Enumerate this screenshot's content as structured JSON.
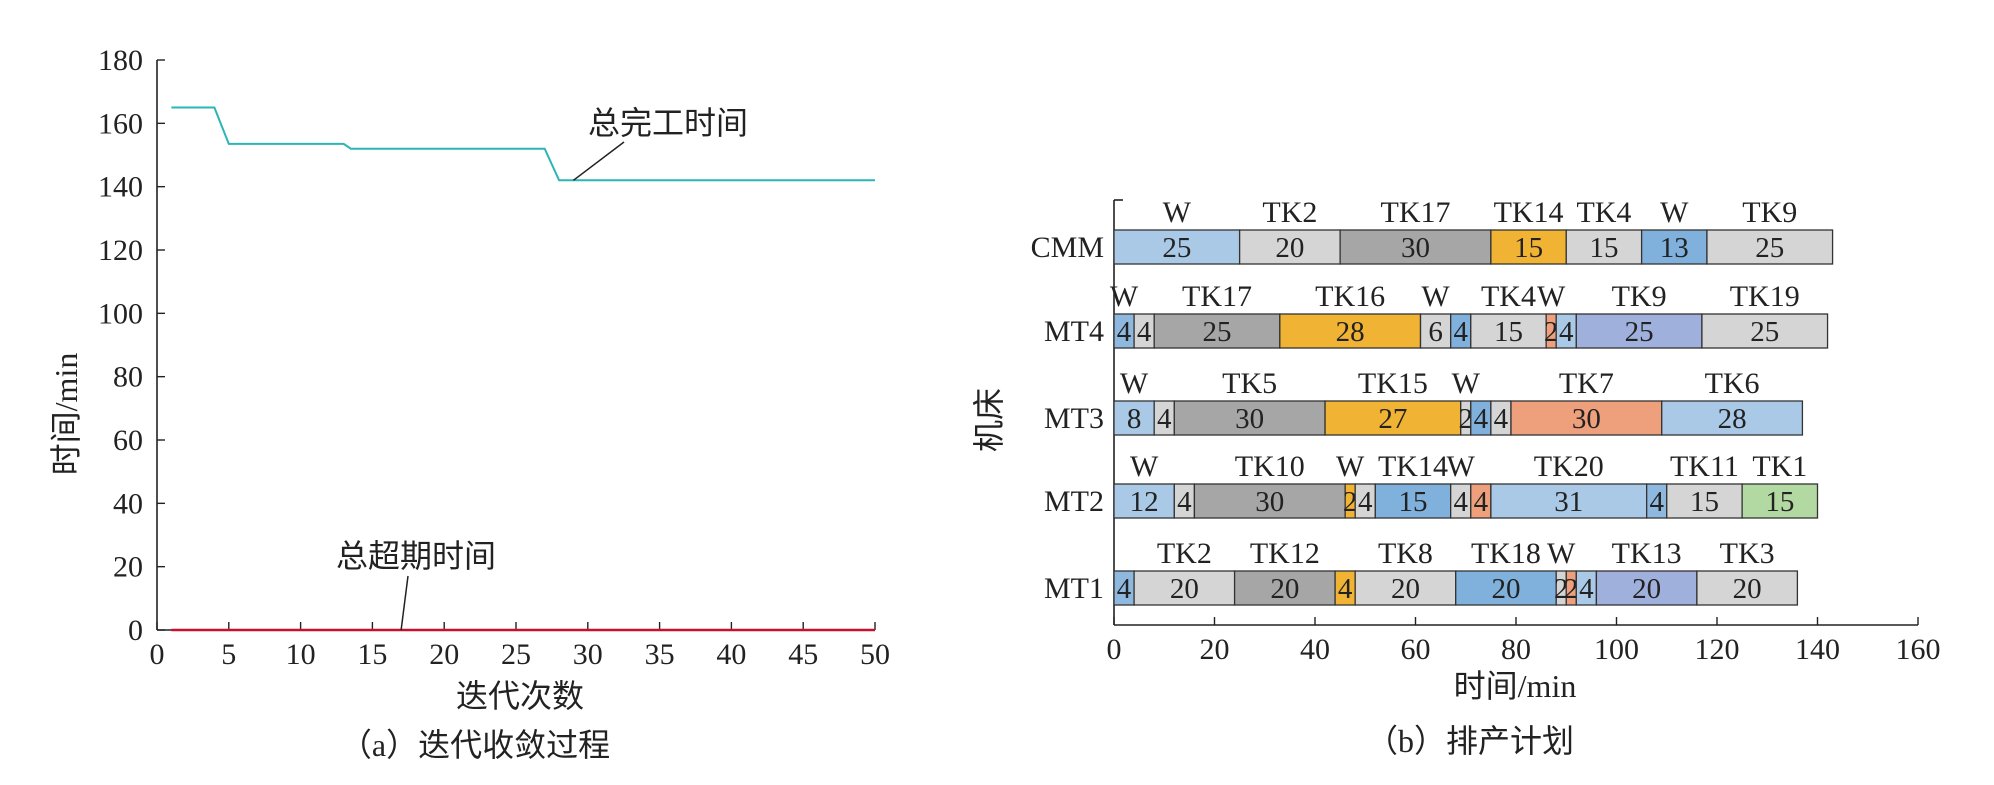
{
  "chart_data": [
    {
      "type": "line",
      "caption": "（a）迭代收敛过程",
      "xlabel": "迭代次数",
      "ylabel": "时间/min",
      "xlim": [
        0,
        50
      ],
      "ylim": [
        0,
        180
      ],
      "xticks": [
        0,
        5,
        10,
        15,
        20,
        25,
        30,
        35,
        40,
        45,
        50
      ],
      "yticks": [
        0,
        20,
        40,
        60,
        80,
        100,
        120,
        140,
        160,
        180
      ],
      "series": [
        {
          "name": "总完工时间",
          "color": "#2bb5b5",
          "x": [
            1,
            4,
            5,
            13,
            13.5,
            27,
            28,
            29,
            50
          ],
          "y": [
            165,
            165,
            153.5,
            153.5,
            152,
            152,
            142,
            142,
            142
          ]
        },
        {
          "name": "总超期时间",
          "color": "#c8102e",
          "x": [
            1,
            50
          ],
          "y": [
            0,
            0
          ]
        }
      ]
    },
    {
      "type": "gantt",
      "caption": "（b）排产计划",
      "xlabel": "时间/min",
      "ylabel": "机床",
      "xlim": [
        0,
        160
      ],
      "xticks": [
        0,
        20,
        40,
        60,
        80,
        100,
        120,
        140,
        160
      ],
      "machines": [
        {
          "name": "CMM",
          "segments": [
            {
              "task": "W",
              "start": 0,
              "duration": 25,
              "label": "25",
              "color": "#a9c9e6"
            },
            {
              "task": "TK2",
              "start": 25,
              "duration": 20,
              "label": "20",
              "color": "#d5d5d5"
            },
            {
              "task": "TK17",
              "start": 45,
              "duration": 30,
              "label": "30",
              "color": "#a6a6a6"
            },
            {
              "task": "TK14",
              "start": 75,
              "duration": 15,
              "label": "15",
              "color": "#f1b333"
            },
            {
              "task": "TK4",
              "start": 90,
              "duration": 15,
              "label": "15",
              "color": "#d5d5d5"
            },
            {
              "task": "W",
              "start": 105,
              "duration": 13,
              "label": "13",
              "color": "#7fb1dc"
            },
            {
              "task": "TK9",
              "start": 118,
              "duration": 25,
              "label": "25",
              "color": "#d5d5d5"
            }
          ]
        },
        {
          "name": "MT4",
          "segments": [
            {
              "task": "W",
              "start": 0,
              "duration": 4,
              "label": "4",
              "color": "#8fb8df"
            },
            {
              "task": "",
              "start": 4,
              "duration": 4,
              "label": "4",
              "color": "#d5d5d5"
            },
            {
              "task": "TK17",
              "start": 8,
              "duration": 25,
              "label": "25",
              "color": "#a6a6a6"
            },
            {
              "task": "TK16",
              "start": 33,
              "duration": 28,
              "label": "28",
              "color": "#f1b333"
            },
            {
              "task": "W",
              "start": 61,
              "duration": 6,
              "label": "6",
              "color": "#d5d5d5"
            },
            {
              "task": "",
              "start": 67,
              "duration": 4,
              "label": "4",
              "color": "#7fb1dc"
            },
            {
              "task": "TK4",
              "start": 71,
              "duration": 15,
              "label": "15",
              "color": "#d5d5d5"
            },
            {
              "task": "W",
              "start": 86,
              "duration": 2,
              "label": "2",
              "color": "#ee9f7c"
            },
            {
              "task": "",
              "start": 88,
              "duration": 4,
              "label": "4",
              "color": "#a9c9e6"
            },
            {
              "task": "TK9",
              "start": 92,
              "duration": 25,
              "label": "25",
              "color": "#9fb0dc"
            },
            {
              "task": "TK19",
              "start": 117,
              "duration": 25,
              "label": "25",
              "color": "#d5d5d5"
            }
          ]
        },
        {
          "name": "MT3",
          "segments": [
            {
              "task": "W",
              "start": 0,
              "duration": 8,
              "label": "8",
              "color": "#a9c9e6"
            },
            {
              "task": "",
              "start": 8,
              "duration": 4,
              "label": "4",
              "color": "#d5d5d5"
            },
            {
              "task": "TK5",
              "start": 12,
              "duration": 30,
              "label": "30",
              "color": "#a6a6a6"
            },
            {
              "task": "TK15",
              "start": 42,
              "duration": 27,
              "label": "27",
              "color": "#f1b333"
            },
            {
              "task": "W",
              "start": 69,
              "duration": 2,
              "label": "2",
              "color": "#d5d5d5"
            },
            {
              "task": "",
              "start": 71,
              "duration": 4,
              "label": "4",
              "color": "#7fb1dc"
            },
            {
              "task": "",
              "start": 75,
              "duration": 4,
              "label": "4",
              "color": "#d5d5d5"
            },
            {
              "task": "TK7",
              "start": 79,
              "duration": 30,
              "label": "30",
              "color": "#ee9f7c"
            },
            {
              "task": "TK6",
              "start": 109,
              "duration": 28,
              "label": "28",
              "color": "#a9c9e6"
            }
          ]
        },
        {
          "name": "MT2",
          "segments": [
            {
              "task": "W",
              "start": 0,
              "duration": 12,
              "label": "12",
              "color": "#a9c9e6"
            },
            {
              "task": "",
              "start": 12,
              "duration": 4,
              "label": "4",
              "color": "#d5d5d5"
            },
            {
              "task": "TK10",
              "start": 16,
              "duration": 30,
              "label": "30",
              "color": "#a6a6a6"
            },
            {
              "task": "W",
              "start": 46,
              "duration": 2,
              "label": "2",
              "color": "#f1b333"
            },
            {
              "task": "",
              "start": 48,
              "duration": 4,
              "label": "4",
              "color": "#d5d5d5"
            },
            {
              "task": "TK14",
              "start": 52,
              "duration": 15,
              "label": "15",
              "color": "#7fb1dc"
            },
            {
              "task": "W",
              "start": 67,
              "duration": 4,
              "label": "4",
              "color": "#d5d5d5"
            },
            {
              "task": "",
              "start": 71,
              "duration": 4,
              "label": "4",
              "color": "#ee9f7c"
            },
            {
              "task": "TK20",
              "start": 75,
              "duration": 31,
              "label": "31",
              "color": "#a9c9e6"
            },
            {
              "task": "",
              "start": 106,
              "duration": 4,
              "label": "4",
              "color": "#8fb8df"
            },
            {
              "task": "TK11",
              "start": 110,
              "duration": 15,
              "label": "15",
              "color": "#d5d5d5"
            },
            {
              "task": "TK1",
              "start": 125,
              "duration": 15,
              "label": "15",
              "color": "#b3d9a3"
            }
          ]
        },
        {
          "name": "MT1",
          "segments": [
            {
              "task": "",
              "start": 0,
              "duration": 4,
              "label": "4",
              "color": "#8fb8df"
            },
            {
              "task": "TK2",
              "start": 4,
              "duration": 20,
              "label": "20",
              "color": "#d5d5d5"
            },
            {
              "task": "TK12",
              "start": 24,
              "duration": 20,
              "label": "20",
              "color": "#a6a6a6"
            },
            {
              "task": "",
              "start": 44,
              "duration": 4,
              "label": "4",
              "color": "#f1b333"
            },
            {
              "task": "TK8",
              "start": 48,
              "duration": 20,
              "label": "20",
              "color": "#d5d5d5"
            },
            {
              "task": "TK18",
              "start": 68,
              "duration": 20,
              "label": "20",
              "color": "#7fb1dc"
            },
            {
              "task": "W",
              "start": 88,
              "duration": 2,
              "label": "2",
              "color": "#d5d5d5"
            },
            {
              "task": "",
              "start": 90,
              "duration": 2,
              "label": "2",
              "color": "#ee9f7c"
            },
            {
              "task": "",
              "start": 92,
              "duration": 4,
              "label": "4",
              "color": "#a9c9e6"
            },
            {
              "task": "TK13",
              "start": 96,
              "duration": 20,
              "label": "20",
              "color": "#9fb0dc"
            },
            {
              "task": "TK3",
              "start": 116,
              "duration": 20,
              "label": "20",
              "color": "#d5d5d5"
            }
          ]
        }
      ]
    }
  ]
}
